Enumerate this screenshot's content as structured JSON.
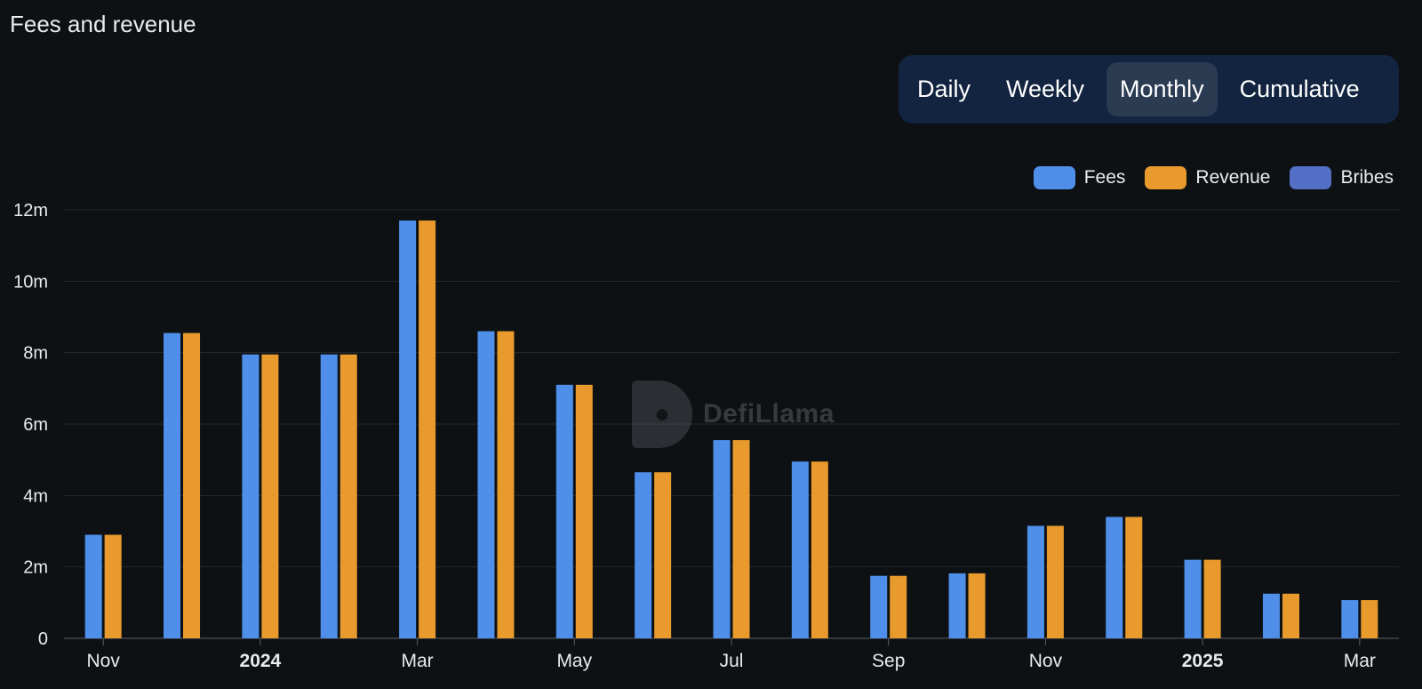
{
  "header": {
    "title": "Fees and revenue"
  },
  "period_toggle": {
    "options": [
      "Daily",
      "Weekly",
      "Monthly",
      "Cumulative"
    ],
    "selected": "Monthly"
  },
  "legend": [
    {
      "label": "Fees",
      "color": "#4f8fea"
    },
    {
      "label": "Revenue",
      "color": "#e89a2c"
    },
    {
      "label": "Bribes",
      "color": "#5470c6"
    }
  ],
  "watermark": {
    "text": "DefiLlama"
  },
  "chart_data": {
    "type": "bar",
    "categories": [
      "2023-11",
      "2023-12",
      "2024-01",
      "2024-02",
      "2024-03",
      "2024-04",
      "2024-05",
      "2024-06",
      "2024-07",
      "2024-08",
      "2024-09",
      "2024-10",
      "2024-11",
      "2024-12",
      "2025-01",
      "2025-02",
      "2025-03"
    ],
    "series": [
      {
        "name": "Fees",
        "color": "#4f8fea",
        "values": [
          2.9,
          8.55,
          7.95,
          7.95,
          11.7,
          8.6,
          7.1,
          4.65,
          5.55,
          4.95,
          1.75,
          1.82,
          3.15,
          3.4,
          2.2,
          1.25,
          1.07
        ]
      },
      {
        "name": "Revenue",
        "color": "#e89a2c",
        "values": [
          2.9,
          8.55,
          7.95,
          7.95,
          11.7,
          8.6,
          7.1,
          4.65,
          5.55,
          4.95,
          1.75,
          1.82,
          3.15,
          3.4,
          2.2,
          1.25,
          1.07
        ]
      },
      {
        "name": "Bribes",
        "color": "#5470c6",
        "values": [
          0,
          0,
          0,
          0,
          0,
          0,
          0,
          0,
          0,
          0,
          0,
          0,
          0,
          0,
          0,
          0,
          0
        ]
      }
    ],
    "unit": "m",
    "ylim": [
      0,
      12
    ],
    "yticks": [
      "0",
      "2m",
      "4m",
      "6m",
      "8m",
      "10m",
      "12m"
    ],
    "xtick_labels": [
      {
        "category": "2023-11",
        "label": "Nov",
        "bold": false
      },
      {
        "category": "2024-01",
        "label": "2024",
        "bold": true
      },
      {
        "category": "2024-03",
        "label": "Mar",
        "bold": false
      },
      {
        "category": "2024-05",
        "label": "May",
        "bold": false
      },
      {
        "category": "2024-07",
        "label": "Jul",
        "bold": false
      },
      {
        "category": "2024-09",
        "label": "Sep",
        "bold": false
      },
      {
        "category": "2024-11",
        "label": "Nov",
        "bold": false
      },
      {
        "category": "2025-01",
        "label": "2025",
        "bold": true
      },
      {
        "category": "2025-03",
        "label": "Mar",
        "bold": false
      }
    ],
    "grid": true,
    "legend_position": "top-right"
  }
}
